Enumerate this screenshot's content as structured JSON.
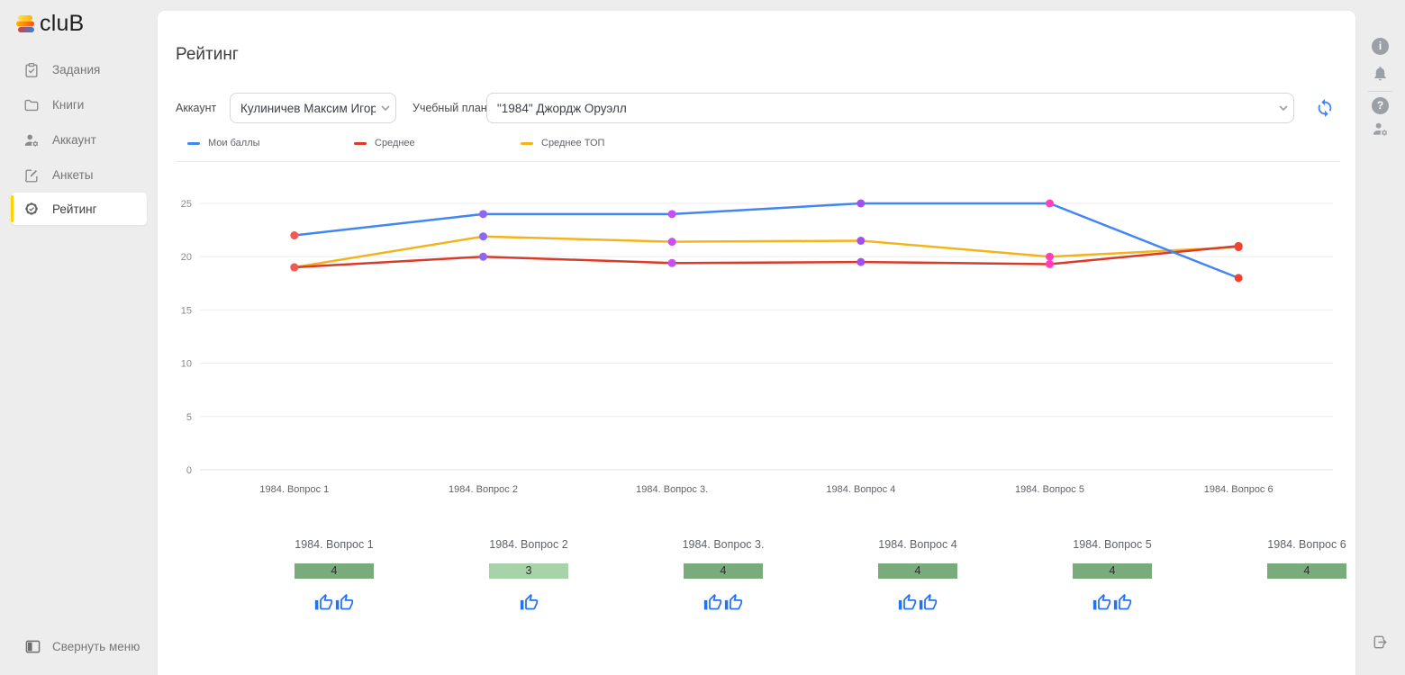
{
  "app": {
    "logo_b": "B",
    "logo_text": "cluB"
  },
  "sidebar": {
    "items": [
      {
        "label": "Задания"
      },
      {
        "label": "Книги"
      },
      {
        "label": "Аккаунт"
      },
      {
        "label": "Анкеты"
      },
      {
        "label": "Рейтинг"
      }
    ],
    "active_index": 4,
    "active_accent": "#ffd200",
    "collapse_label": "Свернуть меню"
  },
  "header": {
    "title": "Рейтинг"
  },
  "filters": {
    "account_label": "Аккаунт",
    "account_value": "Кулиничев Максим Игор",
    "plan_label": "Учебный план",
    "plan_value": "\"1984\" Джордж Оруэлл"
  },
  "chart_data": {
    "type": "line",
    "categories": [
      "1984. Вопрос 1",
      "1984. Вопрос 2",
      "1984. Вопрос 3.",
      "1984. Вопрос 4",
      "1984. Вопрос 5",
      "1984. Вопрос 6"
    ],
    "series": [
      {
        "name": "Мои баллы",
        "color": "#4285f4",
        "values": [
          22,
          24,
          24,
          25,
          25,
          18
        ]
      },
      {
        "name": "Среднее",
        "color": "#d93b2b",
        "values": [
          19,
          20,
          19.4,
          19.5,
          19.3,
          21
        ]
      },
      {
        "name": "Среднее ТОП",
        "color": "#f2b41c",
        "values": [
          19,
          21.9,
          21.4,
          21.5,
          20,
          20.9
        ]
      }
    ],
    "marker_colors": [
      "#f2594f",
      "#8e66f2",
      "#c84ff0",
      "#a34ff0",
      "#ff3fc0",
      "#f4402f"
    ],
    "ylim": [
      0,
      25
    ],
    "yticks": [
      0,
      5,
      10,
      15,
      20,
      25
    ],
    "grid": true,
    "legend_position": "top"
  },
  "questions": [
    {
      "title": "1984. Вопрос 1",
      "score": "4",
      "score_color": "#7aab7c",
      "likes": 2
    },
    {
      "title": "1984. Вопрос 2",
      "score": "3",
      "score_color": "#a8d3a8",
      "likes": 1
    },
    {
      "title": "1984. Вопрос 3.",
      "score": "4",
      "score_color": "#7aab7c",
      "likes": 2
    },
    {
      "title": "1984. Вопрос 4",
      "score": "4",
      "score_color": "#7aab7c",
      "likes": 2
    },
    {
      "title": "1984. Вопрос 5",
      "score": "4",
      "score_color": "#7aab7c",
      "likes": 2
    },
    {
      "title": "1984. Вопрос 6",
      "score": "4",
      "score_color": "#7aab7c",
      "likes": 0
    }
  ],
  "ui": {
    "like_color": "#2472f2",
    "refresh_color": "#4285f4"
  }
}
